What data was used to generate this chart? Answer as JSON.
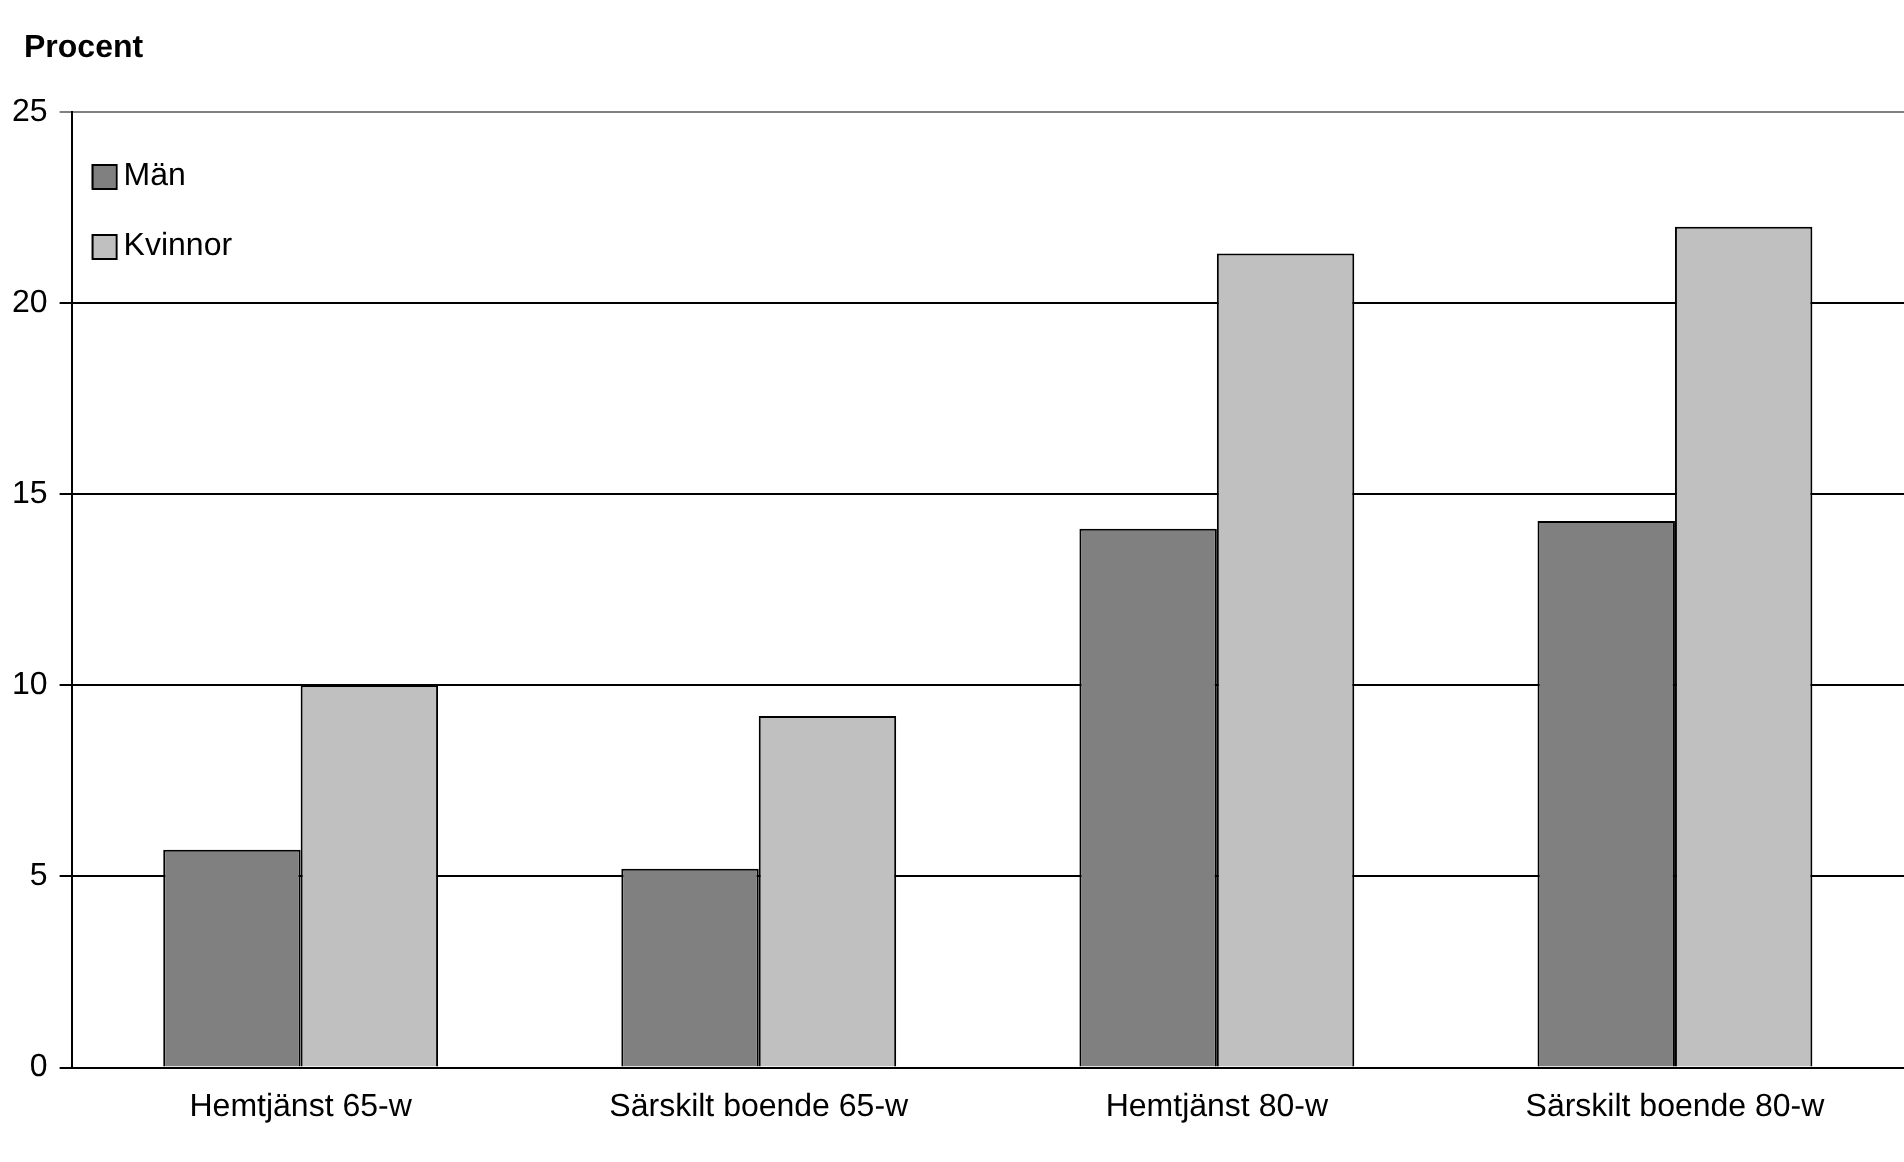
{
  "chart_data": {
    "type": "bar",
    "ylabel": "Procent",
    "categories": [
      "Hemtjänst 65-w",
      "Särskilt boende 65-w",
      "Hemtjänst 80-w",
      "Särskilt boende 80-w"
    ],
    "series": [
      {
        "name": "Män",
        "color": "#808080",
        "values": [
          5.7,
          5.2,
          14.1,
          14.3
        ]
      },
      {
        "name": "Kvinnor",
        "color": "#c0c0c0",
        "values": [
          10.0,
          9.2,
          21.3,
          22.0
        ]
      }
    ],
    "ylim": [
      0,
      25
    ],
    "yticks": [
      0,
      5,
      10,
      15,
      20,
      25
    ],
    "grid": "y",
    "legend": "top left"
  }
}
